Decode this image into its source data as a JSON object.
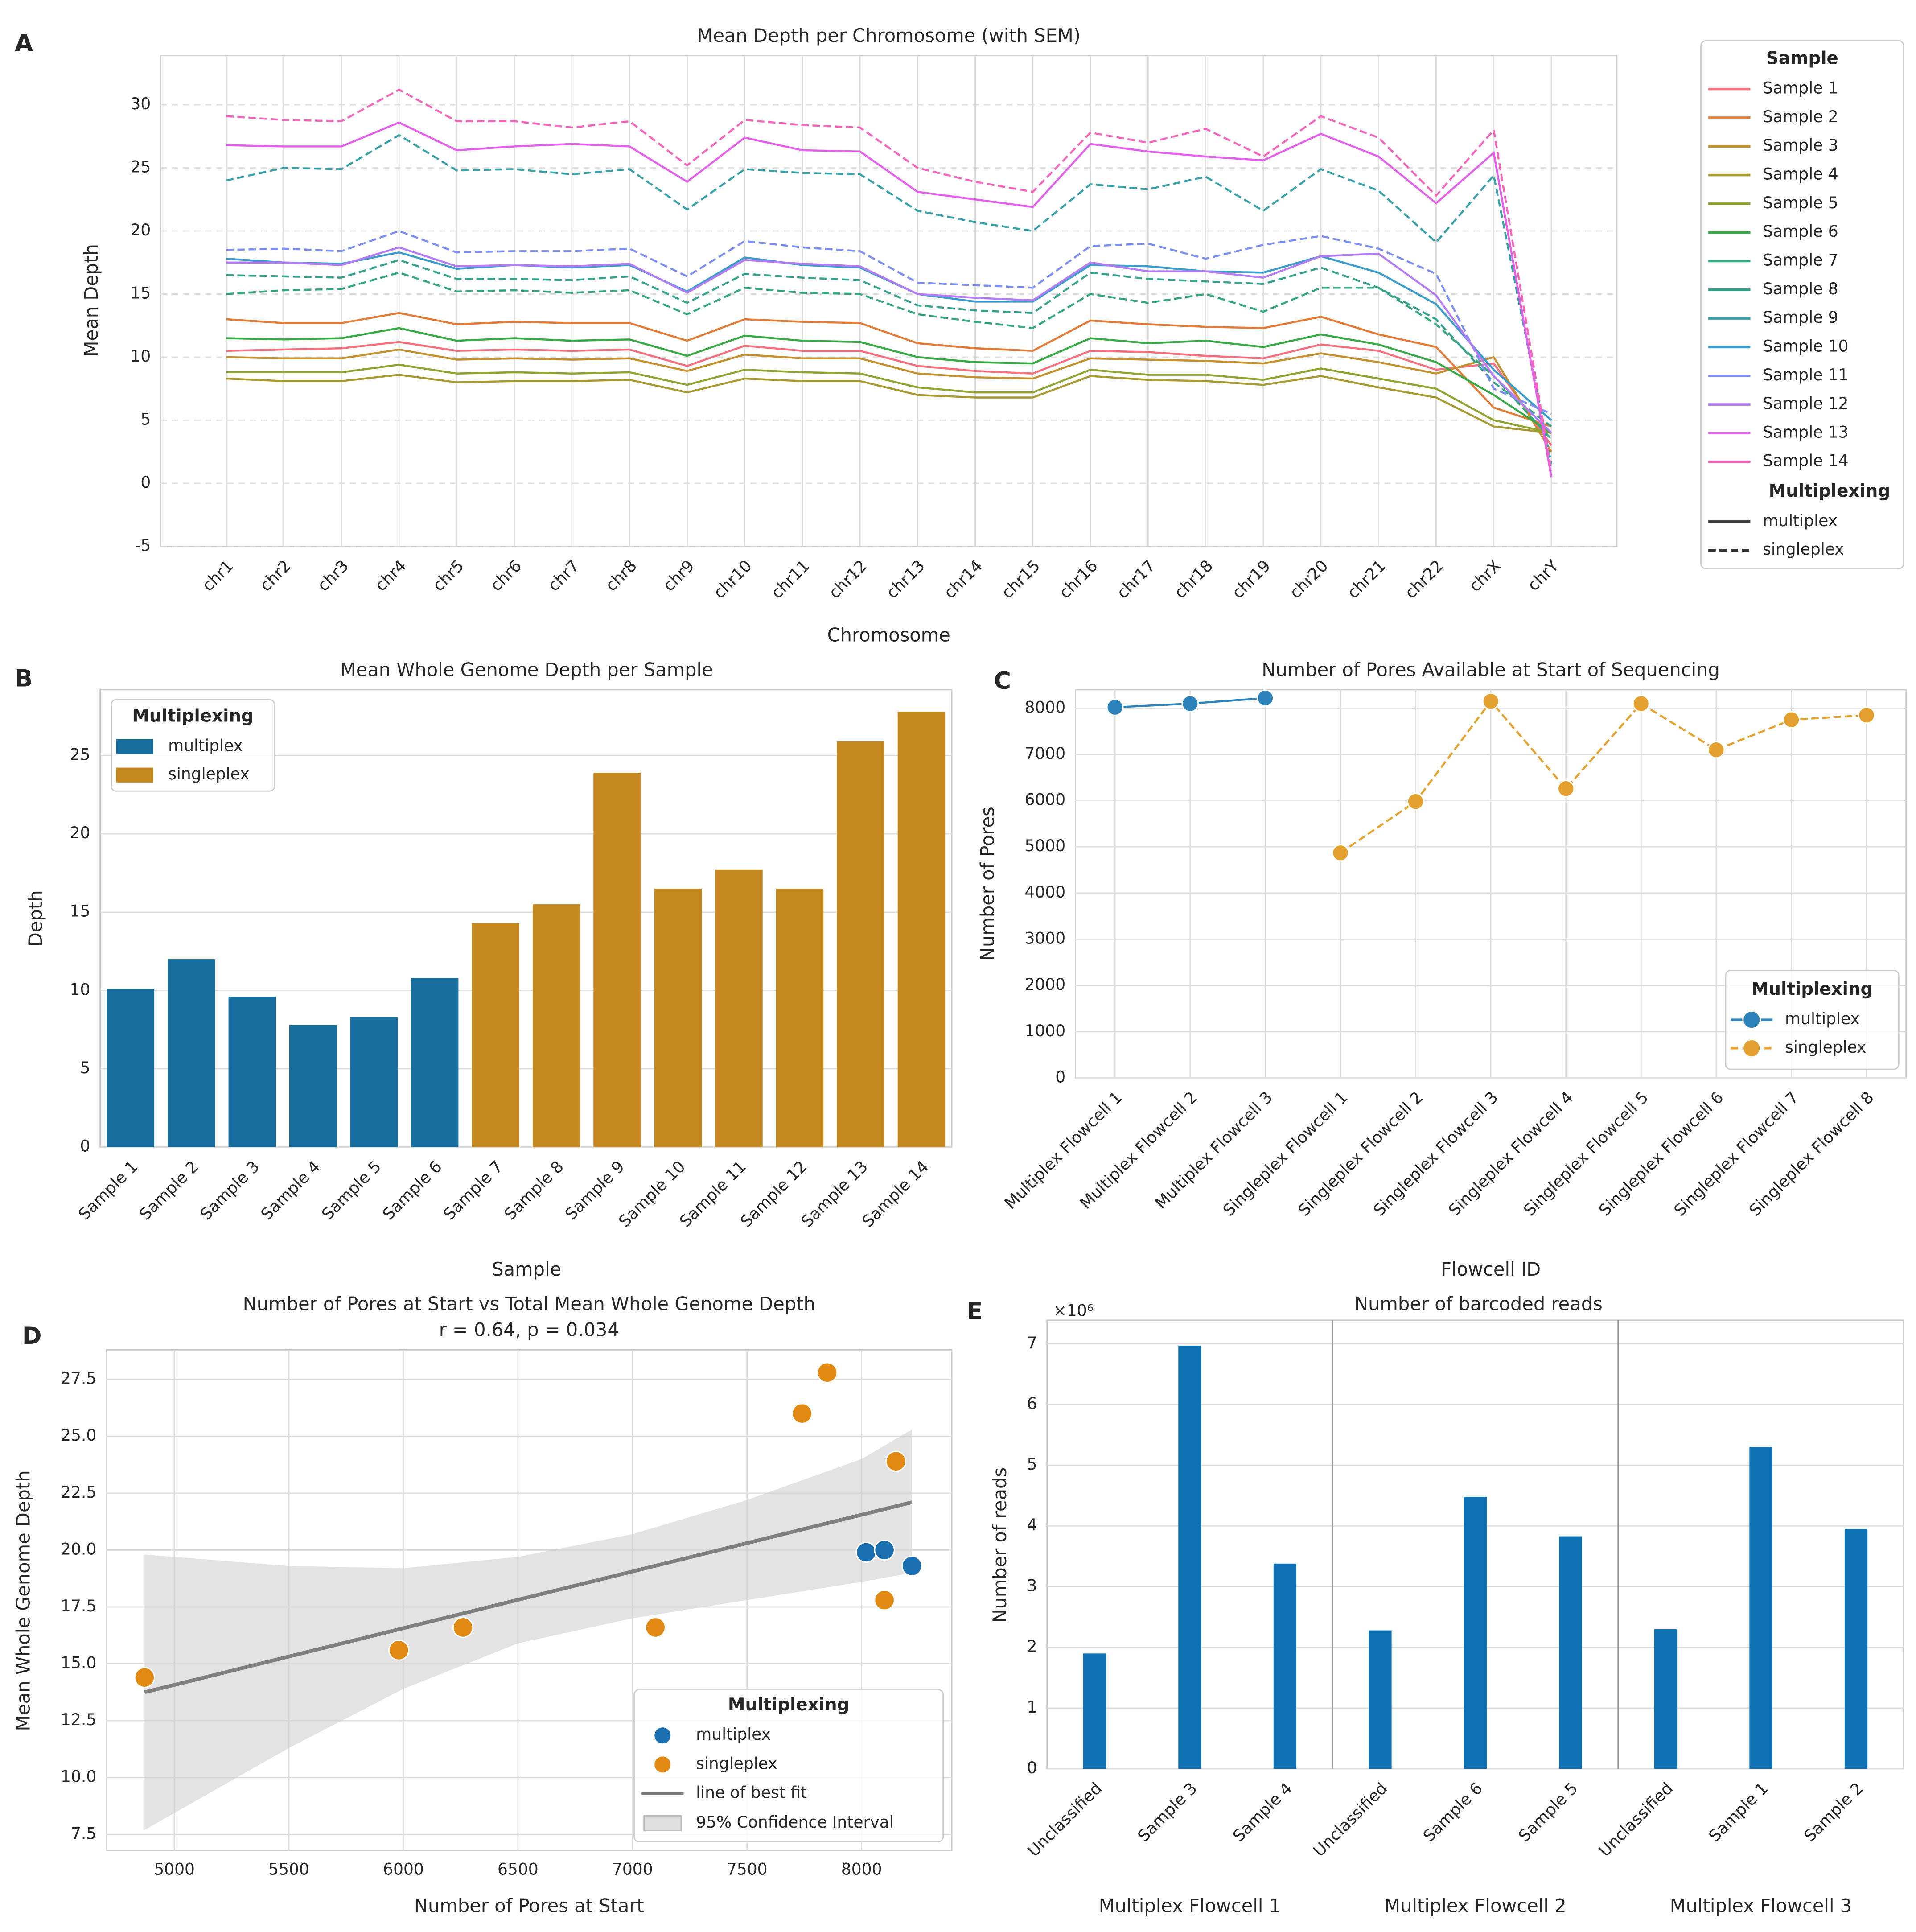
{
  "chart_data": [
    {
      "type": "line",
      "label": "A",
      "title": "Mean Depth per Chromosome (with SEM)",
      "x_label": "Chromosome",
      "y_label": "Mean Depth",
      "categories": [
        "chr1",
        "chr2",
        "chr3",
        "chr4",
        "chr5",
        "chr6",
        "chr7",
        "chr8",
        "chr9",
        "chr10",
        "chr11",
        "chr12",
        "chr13",
        "chr14",
        "chr15",
        "chr16",
        "chr17",
        "chr18",
        "chr19",
        "chr20",
        "chr21",
        "chr22",
        "chrX",
        "chrY"
      ],
      "ylim": [
        -5,
        33.9
      ],
      "yticks": [
        -5,
        0,
        5,
        10,
        15,
        20,
        25,
        30
      ],
      "grid": true,
      "legend_title": "Sample",
      "style_legend_title": "Multiplexing",
      "style_legend": [
        {
          "name": "multiplex",
          "dashed": false
        },
        {
          "name": "singleplex",
          "dashed": true
        }
      ],
      "series": [
        {
          "name": "Sample 1",
          "color": "#f5707f",
          "dashed": false,
          "values": [
            10.5,
            10.6,
            10.7,
            11.2,
            10.5,
            10.6,
            10.5,
            10.6,
            9.3,
            10.9,
            10.5,
            10.5,
            9.3,
            8.9,
            8.7,
            10.5,
            10.4,
            10.1,
            9.9,
            11.0,
            10.5,
            9.0,
            9.5,
            3.0
          ]
        },
        {
          "name": "Sample 2",
          "color": "#e27b37",
          "dashed": false,
          "values": [
            13.0,
            12.7,
            12.7,
            13.5,
            12.6,
            12.8,
            12.7,
            12.7,
            11.3,
            13.0,
            12.8,
            12.7,
            11.1,
            10.7,
            10.5,
            12.9,
            12.6,
            12.4,
            12.3,
            13.2,
            11.8,
            10.8,
            6.0,
            4.5
          ]
        },
        {
          "name": "Sample 3",
          "color": "#c59130",
          "dashed": false,
          "values": [
            10.0,
            9.9,
            9.9,
            10.6,
            9.8,
            9.9,
            9.8,
            9.9,
            8.9,
            10.2,
            9.9,
            9.9,
            8.7,
            8.4,
            8.3,
            9.9,
            9.8,
            9.7,
            9.5,
            10.3,
            9.6,
            8.7,
            10.0,
            2.5
          ]
        },
        {
          "name": "Sample 4",
          "color": "#a89a32",
          "dashed": false,
          "values": [
            8.3,
            8.1,
            8.1,
            8.6,
            8.0,
            8.1,
            8.1,
            8.2,
            7.2,
            8.3,
            8.1,
            8.1,
            7.0,
            6.8,
            6.8,
            8.5,
            8.2,
            8.1,
            7.8,
            8.5,
            7.6,
            6.8,
            4.5,
            4.0
          ]
        },
        {
          "name": "Sample 5",
          "color": "#8ea534",
          "dashed": false,
          "values": [
            8.8,
            8.8,
            8.8,
            9.4,
            8.7,
            8.8,
            8.7,
            8.8,
            7.8,
            9.0,
            8.8,
            8.7,
            7.6,
            7.2,
            7.2,
            9.0,
            8.6,
            8.6,
            8.2,
            9.1,
            8.3,
            7.5,
            5.0,
            4.0
          ]
        },
        {
          "name": "Sample 6",
          "color": "#39a846",
          "dashed": false,
          "values": [
            11.5,
            11.4,
            11.5,
            12.3,
            11.3,
            11.5,
            11.3,
            11.4,
            10.1,
            11.7,
            11.3,
            11.2,
            10.0,
            9.6,
            9.5,
            11.5,
            11.1,
            11.3,
            10.8,
            11.8,
            11.0,
            9.6,
            7.0,
            4.0
          ]
        },
        {
          "name": "Sample 7",
          "color": "#35a57a",
          "dashed": true,
          "values": [
            15.0,
            15.3,
            15.4,
            16.7,
            15.2,
            15.3,
            15.1,
            15.3,
            13.4,
            15.5,
            15.1,
            15.0,
            13.4,
            12.8,
            12.3,
            15.0,
            14.3,
            15.0,
            13.6,
            15.5,
            15.5,
            12.6,
            8.5,
            3.5
          ]
        },
        {
          "name": "Sample 8",
          "color": "#36a28e",
          "dashed": true,
          "values": [
            16.5,
            16.4,
            16.3,
            17.7,
            16.2,
            16.2,
            16.1,
            16.4,
            14.3,
            16.6,
            16.3,
            16.1,
            14.1,
            13.7,
            13.5,
            16.7,
            16.2,
            16.0,
            15.8,
            17.1,
            15.5,
            13.0,
            8.0,
            4.5
          ]
        },
        {
          "name": "Sample 9",
          "color": "#38a0a7",
          "dashed": true,
          "values": [
            24.0,
            25.0,
            24.9,
            27.6,
            24.8,
            24.9,
            24.5,
            24.9,
            21.7,
            24.9,
            24.6,
            24.5,
            21.6,
            20.7,
            20.0,
            23.7,
            23.3,
            24.3,
            21.6,
            24.9,
            23.2,
            19.1,
            24.4,
            1.5
          ]
        },
        {
          "name": "Sample 10",
          "color": "#3b9cca",
          "dashed": false,
          "values": [
            17.8,
            17.5,
            17.4,
            18.3,
            17.0,
            17.3,
            17.1,
            17.3,
            15.2,
            17.9,
            17.3,
            17.1,
            15.0,
            14.4,
            14.4,
            17.3,
            17.2,
            16.8,
            16.7,
            18.0,
            16.7,
            14.2,
            9.0,
            5.0
          ]
        },
        {
          "name": "Sample 11",
          "color": "#7d8ef3",
          "dashed": true,
          "values": [
            18.5,
            18.6,
            18.4,
            20.0,
            18.3,
            18.4,
            18.4,
            18.6,
            16.4,
            19.2,
            18.7,
            18.4,
            15.9,
            15.7,
            15.5,
            18.8,
            19.0,
            17.8,
            18.9,
            19.6,
            18.6,
            16.6,
            7.5,
            5.5
          ]
        },
        {
          "name": "Sample 12",
          "color": "#b47cf4",
          "dashed": false,
          "values": [
            17.5,
            17.5,
            17.3,
            18.7,
            17.2,
            17.3,
            17.2,
            17.4,
            15.1,
            17.7,
            17.4,
            17.2,
            15.0,
            14.7,
            14.5,
            17.5,
            16.8,
            16.8,
            16.3,
            18.0,
            18.2,
            14.9,
            8.5,
            4.0
          ]
        },
        {
          "name": "Sample 13",
          "color": "#e360ea",
          "dashed": false,
          "values": [
            26.8,
            26.7,
            26.7,
            28.6,
            26.4,
            26.7,
            26.9,
            26.7,
            23.9,
            27.4,
            26.4,
            26.3,
            23.1,
            22.5,
            21.9,
            26.9,
            26.3,
            25.9,
            25.6,
            27.7,
            25.9,
            22.2,
            26.2,
            0.5
          ]
        },
        {
          "name": "Sample 14",
          "color": "#f466b9",
          "dashed": true,
          "values": [
            29.1,
            28.8,
            28.7,
            31.2,
            28.7,
            28.7,
            28.2,
            28.7,
            25.2,
            28.8,
            28.4,
            28.2,
            25.0,
            23.9,
            23.1,
            27.8,
            27.0,
            28.1,
            25.9,
            29.1,
            27.4,
            22.8,
            28.0,
            1.0
          ]
        }
      ]
    },
    {
      "type": "bar",
      "label": "B",
      "title": "Mean Whole Genome Depth per Sample",
      "x_label": "Sample",
      "y_label": "Depth",
      "categories": [
        "Sample 1",
        "Sample 2",
        "Sample 3",
        "Sample 4",
        "Sample 5",
        "Sample 6",
        "Sample 7",
        "Sample 8",
        "Sample 9",
        "Sample 10",
        "Sample 11",
        "Sample 12",
        "Sample 13",
        "Sample 14"
      ],
      "values": [
        10.1,
        12.0,
        9.6,
        7.8,
        8.3,
        10.8,
        14.3,
        15.5,
        23.9,
        16.5,
        17.7,
        16.5,
        25.9,
        27.8
      ],
      "colors": [
        "#176d9c",
        "#176d9c",
        "#176d9c",
        "#176d9c",
        "#176d9c",
        "#176d9c",
        "#c38820",
        "#c38820",
        "#c38820",
        "#c38820",
        "#c38820",
        "#c38820",
        "#c38820",
        "#c38820"
      ],
      "ylim": [
        0,
        29.2
      ],
      "yticks": [
        0,
        5,
        10,
        15,
        20,
        25
      ],
      "grid": true,
      "legend_title": "Multiplexing",
      "legend": [
        {
          "name": "multiplex",
          "color": "#176d9c"
        },
        {
          "name": "singleplex",
          "color": "#c38820"
        }
      ]
    },
    {
      "type": "line",
      "label": "C",
      "title": "Number of Pores Available at Start of Sequencing",
      "x_label": "Flowcell ID",
      "y_label": "Number of Pores",
      "categories": [
        "Multiplex Flowcell 1",
        "Multiplex Flowcell 2",
        "Multiplex Flowcell 3",
        "Singleplex Flowcell 1",
        "Singleplex Flowcell 2",
        "Singleplex Flowcell 3",
        "Singleplex Flowcell 4",
        "Singleplex Flowcell 5",
        "Singleplex Flowcell 6",
        "Singleplex Flowcell 7",
        "Singleplex Flowcell 8"
      ],
      "ylim": [
        0,
        8400
      ],
      "yticks": [
        0,
        1000,
        2000,
        3000,
        4000,
        5000,
        6000,
        7000,
        8000
      ],
      "grid": true,
      "markers": true,
      "legend_title": "Multiplexing",
      "series": [
        {
          "name": "multiplex",
          "color": "#2b83ba",
          "dashed": false,
          "values": [
            8020,
            8100,
            8220,
            null,
            null,
            null,
            null,
            null,
            null,
            null,
            null
          ]
        },
        {
          "name": "singleplex",
          "color": "#e5a12f",
          "dashed": true,
          "values": [
            null,
            null,
            null,
            4870,
            5980,
            8150,
            6260,
            8100,
            7100,
            7750,
            7850
          ]
        }
      ]
    },
    {
      "type": "scatter",
      "label": "D",
      "title": "Number of Pores at Start vs Total Mean Whole Genome Depth",
      "subtitle": "r = 0.64, p = 0.034",
      "x_label": "Number of Pores at Start",
      "y_label": "Mean Whole Genome Depth",
      "xlim": [
        4703,
        8394
      ],
      "xticks": [
        5000,
        5500,
        6000,
        6500,
        7000,
        7500,
        8000
      ],
      "ylim": [
        6.8,
        28.8
      ],
      "yticks": [
        7.5,
        {
          "value": 10,
          "label": "10.0"
        },
        12.5,
        {
          "value": 15,
          "label": "15.0"
        },
        17.5,
        {
          "value": 20,
          "label": "20.0"
        },
        22.5,
        {
          "value": 25,
          "label": "25.0"
        },
        27.5
      ],
      "grid": true,
      "legend_title": "Multiplexing",
      "series": [
        {
          "name": "multiplex",
          "color": "#1a6fb0",
          "x": [
            8020,
            8100,
            8220
          ],
          "values": [
            19.9,
            20.0,
            19.3
          ]
        },
        {
          "name": "singleplex",
          "color": "#e08a14",
          "x": [
            4870,
            5980,
            6260,
            7100,
            8150,
            7740,
            7850,
            8100
          ],
          "values": [
            14.4,
            15.6,
            16.6,
            16.6,
            23.9,
            26.0,
            27.8,
            17.8
          ]
        }
      ],
      "fit": {
        "label": "line of best fit",
        "color": "#7f7f7f",
        "x": [
          4870,
          8220
        ],
        "y": [
          13.75,
          22.1
        ]
      },
      "ci": {
        "label": "95% Confidence Interval",
        "color": "#cccccc",
        "x": [
          4870,
          5500,
          6000,
          6500,
          7000,
          7500,
          8000,
          8220
        ],
        "lower": [
          7.7,
          11.3,
          13.9,
          15.9,
          17.0,
          17.8,
          18.6,
          19.0
        ],
        "upper": [
          19.8,
          19.3,
          19.2,
          19.7,
          20.7,
          22.2,
          24.0,
          25.3
        ]
      }
    },
    {
      "type": "bar",
      "label": "E",
      "title": "Number of barcoded reads",
      "y_label": "Number of reads",
      "offset_label": "×10⁶",
      "categories": [
        "Unclassified",
        "Sample 3",
        "Sample 4",
        "Unclassified",
        "Sample 6",
        "Sample 5",
        "Unclassified",
        "Sample 1",
        "Sample 2"
      ],
      "values": [
        1.9,
        6.97,
        3.38,
        2.28,
        4.48,
        3.83,
        2.3,
        5.3,
        3.95
      ],
      "color": "#0f72b5",
      "group_labels": [
        "Multiplex Flowcell 1",
        "Multiplex Flowcell 2",
        "Multiplex Flowcell 3"
      ],
      "ylim": [
        0,
        7.39
      ],
      "yticks": [
        0,
        1,
        2,
        3,
        4,
        5,
        6,
        7
      ],
      "grid": true
    }
  ]
}
